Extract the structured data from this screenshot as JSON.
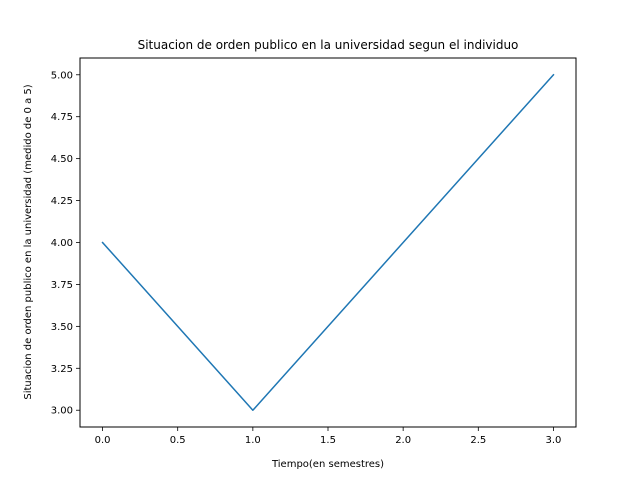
{
  "chart_data": {
    "type": "line",
    "title": "Situacion de orden publico en la universidad segun el individuo",
    "xlabel": "Tiempo(en semestres)",
    "ylabel": "Situacion de orden publico en la universidad (medido de 0 a 5)",
    "x": [
      0,
      1,
      2,
      3
    ],
    "series": [
      {
        "values": [
          4,
          3,
          4,
          5
        ],
        "color": "#1f77b4"
      }
    ],
    "xlim": [
      -0.15,
      3.15
    ],
    "ylim": [
      2.9,
      5.1
    ],
    "xticks": [
      0.0,
      0.5,
      1.0,
      1.5,
      2.0,
      2.5,
      3.0
    ],
    "xtick_labels": [
      "0.0",
      "0.5",
      "1.0",
      "1.5",
      "2.0",
      "2.5",
      "3.0"
    ],
    "yticks": [
      3.0,
      3.25,
      3.5,
      3.75,
      4.0,
      4.25,
      4.5,
      4.75,
      5.0
    ],
    "ytick_labels": [
      "3.00",
      "3.25",
      "3.50",
      "3.75",
      "4.00",
      "4.25",
      "4.50",
      "4.75",
      "5.00"
    ],
    "grid": false,
    "legend": false
  }
}
